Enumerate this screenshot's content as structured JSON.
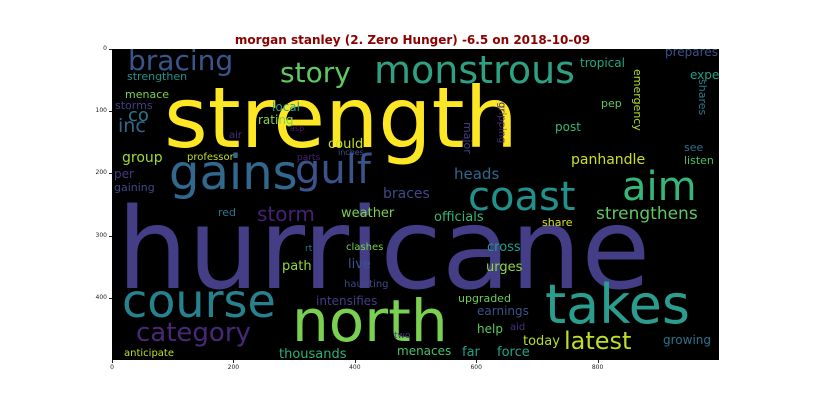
{
  "title": "morgan stanley (2. Zero Hunger) -6.5 on 2018-10-09",
  "axes": {
    "x_ticks": [
      "0",
      "200",
      "400",
      "600",
      "800"
    ],
    "y_ticks": [
      "0",
      "100",
      "200",
      "300",
      "400"
    ]
  },
  "colors": {
    "title": "#8b0000",
    "background": "#000000"
  },
  "words": [
    {
      "text": "strength",
      "color": "#fde725"
    },
    {
      "text": "hurricane",
      "color": "#433e85"
    },
    {
      "text": "gains",
      "color": "#31688e"
    },
    {
      "text": "gulf",
      "color": "#3b528b"
    },
    {
      "text": "coast",
      "color": "#21918c"
    },
    {
      "text": "aim",
      "color": "#35b779"
    },
    {
      "text": "north",
      "color": "#7ad151"
    },
    {
      "text": "takes",
      "color": "#2a9d8f"
    },
    {
      "text": "course",
      "color": "#26828e"
    },
    {
      "text": "monstrous",
      "color": "#2ea083"
    },
    {
      "text": "bracing",
      "color": "#3a548c"
    },
    {
      "text": "story",
      "color": "#5ec962"
    },
    {
      "text": "category",
      "color": "#482878"
    },
    {
      "text": "latest",
      "color": "#bddf26"
    },
    {
      "text": "storm",
      "color": "#482173"
    },
    {
      "text": "strengthens",
      "color": "#5ec962"
    },
    {
      "text": "inc",
      "color": "#31688e"
    },
    {
      "text": "co",
      "color": "#2a788e"
    },
    {
      "text": "group",
      "color": "#a0da39"
    },
    {
      "text": "panhandle",
      "color": "#cde11d"
    },
    {
      "text": "heads",
      "color": "#31688e"
    },
    {
      "text": "braces",
      "color": "#3e4989"
    },
    {
      "text": "weather",
      "color": "#7ad151"
    },
    {
      "text": "officials",
      "color": "#35b779"
    },
    {
      "text": "path",
      "color": "#95d840"
    },
    {
      "text": "live",
      "color": "#3b528b"
    },
    {
      "text": "urges",
      "color": "#90d743"
    },
    {
      "text": "cross",
      "color": "#1f9e89"
    },
    {
      "text": "today",
      "color": "#b5de2b"
    },
    {
      "text": "thousands",
      "color": "#2db27d"
    },
    {
      "text": "menaces",
      "color": "#4ac16d"
    },
    {
      "text": "far",
      "color": "#1fa187"
    },
    {
      "text": "force",
      "color": "#20a486"
    },
    {
      "text": "growing",
      "color": "#2c728e"
    },
    {
      "text": "help",
      "color": "#5ec962"
    },
    {
      "text": "earnings",
      "color": "#3b528b"
    },
    {
      "text": "intensifies",
      "color": "#433e85"
    },
    {
      "text": "upgraded",
      "color": "#6ccd5a"
    },
    {
      "text": "aid",
      "color": "#46307e"
    },
    {
      "text": "two",
      "color": "#443983"
    },
    {
      "text": "anticipate",
      "color": "#c2df23"
    },
    {
      "text": "haunting",
      "color": "#3e4989"
    },
    {
      "text": "clashes",
      "color": "#7ad151"
    },
    {
      "text": "rt",
      "color": "#2a788e"
    },
    {
      "text": "red",
      "color": "#2a788e"
    },
    {
      "text": "gaining",
      "color": "#3e4989"
    },
    {
      "text": "per",
      "color": "#443983"
    },
    {
      "text": "professor",
      "color": "#bddf26"
    },
    {
      "text": "parts",
      "color": "#482173"
    },
    {
      "text": "inches",
      "color": "#3b528b"
    },
    {
      "text": "could",
      "color": "#c8e020"
    },
    {
      "text": "air",
      "color": "#46307e"
    },
    {
      "text": "asp",
      "color": "#481f70"
    },
    {
      "text": "rating",
      "color": "#84d44b"
    },
    {
      "text": "local",
      "color": "#2a9d8f"
    },
    {
      "text": "menace",
      "color": "#7ad151"
    },
    {
      "text": "storms",
      "color": "#433e85"
    },
    {
      "text": "strengthen",
      "color": "#21918c"
    },
    {
      "text": "prepares",
      "color": "#3b528b"
    },
    {
      "text": "tropical",
      "color": "#22a884"
    },
    {
      "text": "expected",
      "color": "#1fa187"
    },
    {
      "text": "emergency",
      "color": "#b5de2b"
    },
    {
      "text": "pep",
      "color": "#5ec962"
    },
    {
      "text": "post",
      "color": "#35b779"
    },
    {
      "text": "shares",
      "color": "#2a788e"
    },
    {
      "text": "see",
      "color": "#2c728e"
    },
    {
      "text": "listen",
      "color": "#4ac16d"
    },
    {
      "text": "share",
      "color": "#dae319"
    },
    {
      "text": "major",
      "color": "#433e85"
    },
    {
      "text": "gripping",
      "color": "#472d7b"
    }
  ]
}
